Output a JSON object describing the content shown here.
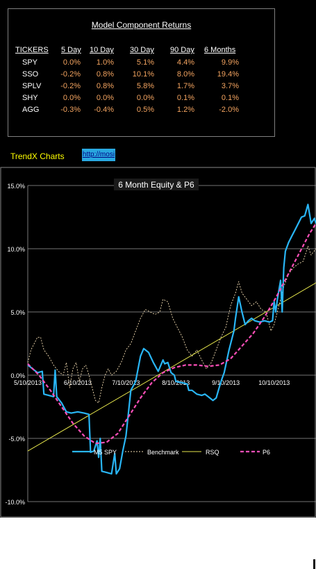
{
  "returns_table": {
    "title": "Model Component Returns",
    "columns": [
      "TICKERS",
      "5 Day",
      "10 Day",
      "30 Day",
      "90 Day",
      "6 Months"
    ],
    "rows": [
      {
        "ticker": "SPY",
        "values": [
          "0.0%",
          "1.0%",
          "5.1%",
          "4.4%",
          "9.9%"
        ]
      },
      {
        "ticker": "SSO",
        "values": [
          "-0.2%",
          "0.8%",
          "10.1%",
          "8.0%",
          "19.4%"
        ]
      },
      {
        "ticker": "SPLV",
        "values": [
          "-0.2%",
          "0.8%",
          "5.8%",
          "1.7%",
          "3.7%"
        ]
      },
      {
        "ticker": "SHY",
        "values": [
          "0.0%",
          "0.0%",
          "0.0%",
          "0.1%",
          "0.1%"
        ]
      },
      {
        "ticker": "AGG",
        "values": [
          "-0.3%",
          "-0.4%",
          "0.5%",
          "1.2%",
          "-2.0%"
        ]
      }
    ]
  },
  "links": {
    "trendx_label": "TrendX Charts",
    "url_text": "http://mosi"
  },
  "colors": {
    "background": "#000000",
    "header_text": "#ffffff",
    "value_text": "#f4a460",
    "trendx_text": "#ffff00",
    "link_bg": "#29a8e0",
    "m5_spy": "#29b6f6",
    "benchmark": "#f5deb3",
    "rsq": "#e6e64c",
    "p6": "#ff4fb8"
  },
  "chart_data": {
    "type": "line",
    "title": "6 Month  Equity & P6",
    "y_tick_labels": [
      "15.0%",
      "10.0%",
      "5.0%",
      "0.0%",
      "-5.0%",
      "-10.0%"
    ],
    "y_ticks": [
      15,
      10,
      5,
      0,
      -5,
      -10
    ],
    "ylim": [
      -10,
      15
    ],
    "x_tick_labels": [
      "5/10/2013",
      "6/10/2013",
      "7/10/2013",
      "8/10/2013",
      "9/10/2013",
      "10/10/2013"
    ],
    "x_ticks": [
      "2013-05-10",
      "2013-06-10",
      "2013-07-10",
      "2013-08-10",
      "2013-09-10",
      "2013-10-10"
    ],
    "xlim": [
      "2013-05-10",
      "2013-11-05"
    ],
    "grid": "horizontal",
    "legend_position": "bottom",
    "series": [
      {
        "name": "M5 SPY",
        "style": "solid",
        "points": [
          [
            "2013-05-10",
            0.8
          ],
          [
            "2013-05-13",
            0.5
          ],
          [
            "2013-05-16",
            0.2
          ],
          [
            "2013-05-19",
            0.3
          ],
          [
            "2013-05-20",
            -1.5
          ],
          [
            "2013-05-23",
            -1.6
          ],
          [
            "2013-05-26",
            -1.7
          ],
          [
            "2013-05-27",
            0.4
          ],
          [
            "2013-05-28",
            -1.7
          ],
          [
            "2013-05-31",
            -2.2
          ],
          [
            "2013-06-03",
            -2.9
          ],
          [
            "2013-06-06",
            -3.0
          ],
          [
            "2013-06-10",
            -2.9
          ],
          [
            "2013-06-14",
            -3.0
          ],
          [
            "2013-06-17",
            -3.1
          ],
          [
            "2013-06-18",
            -6.1
          ],
          [
            "2013-06-20",
            -6.0
          ],
          [
            "2013-06-22",
            -5.2
          ],
          [
            "2013-06-23",
            -6.5
          ],
          [
            "2013-06-24",
            -5.0
          ],
          [
            "2013-06-25",
            -7.6
          ],
          [
            "2013-06-28",
            -7.7
          ],
          [
            "2013-07-01",
            -7.8
          ],
          [
            "2013-07-03",
            -6.2
          ],
          [
            "2013-07-04",
            -7.8
          ],
          [
            "2013-07-06",
            -7.4
          ],
          [
            "2013-07-08",
            -6.0
          ],
          [
            "2013-07-10",
            -4.8
          ],
          [
            "2013-07-13",
            -1.2
          ],
          [
            "2013-07-16",
            -0.5
          ],
          [
            "2013-07-19",
            1.5
          ],
          [
            "2013-07-21",
            2.1
          ],
          [
            "2013-07-24",
            1.8
          ],
          [
            "2013-07-27",
            1.0
          ],
          [
            "2013-07-30",
            0.3
          ],
          [
            "2013-08-02",
            1.2
          ],
          [
            "2013-08-03",
            0.9
          ],
          [
            "2013-08-05",
            1.0
          ],
          [
            "2013-08-07",
            0.2
          ],
          [
            "2013-08-09",
            0.0
          ],
          [
            "2013-08-10",
            -0.5
          ],
          [
            "2013-08-14",
            -0.6
          ],
          [
            "2013-08-17",
            -0.7
          ],
          [
            "2013-08-18",
            -1.2
          ],
          [
            "2013-08-20",
            -1.2
          ],
          [
            "2013-08-23",
            -1.5
          ],
          [
            "2013-08-26",
            -1.6
          ],
          [
            "2013-08-28",
            -1.5
          ],
          [
            "2013-08-30",
            -1.7
          ],
          [
            "2013-09-02",
            -2.0
          ],
          [
            "2013-09-04",
            -1.8
          ],
          [
            "2013-09-07",
            -0.5
          ],
          [
            "2013-09-09",
            0.2
          ],
          [
            "2013-09-12",
            2.0
          ],
          [
            "2013-09-15",
            3.5
          ],
          [
            "2013-09-16",
            4.5
          ],
          [
            "2013-09-18",
            6.2
          ],
          [
            "2013-09-20",
            5.0
          ],
          [
            "2013-09-22",
            4.0
          ],
          [
            "2013-09-24",
            4.3
          ],
          [
            "2013-09-26",
            4.5
          ],
          [
            "2013-09-28",
            4.3
          ],
          [
            "2013-10-01",
            4.2
          ],
          [
            "2013-10-04",
            4.3
          ],
          [
            "2013-10-07",
            4.2
          ],
          [
            "2013-10-09",
            4.3
          ],
          [
            "2013-10-10",
            5.8
          ],
          [
            "2013-10-11",
            5.0
          ],
          [
            "2013-10-12",
            6.0
          ],
          [
            "2013-10-14",
            7.5
          ],
          [
            "2013-10-15",
            5.0
          ],
          [
            "2013-10-16",
            8.5
          ],
          [
            "2013-10-17",
            9.8
          ],
          [
            "2013-10-19",
            10.5
          ],
          [
            "2013-10-21",
            11.0
          ],
          [
            "2013-10-23",
            11.5
          ],
          [
            "2013-10-25",
            12.0
          ],
          [
            "2013-10-27",
            12.5
          ],
          [
            "2013-10-29",
            12.6
          ],
          [
            "2013-10-31",
            13.5
          ],
          [
            "2013-11-02",
            12.0
          ],
          [
            "2013-11-04",
            12.4
          ],
          [
            "2013-11-05",
            12.0
          ]
        ]
      },
      {
        "name": "Benchmark",
        "style": "dashed",
        "points": [
          [
            "2013-05-10",
            1.0
          ],
          [
            "2013-05-12",
            2.0
          ],
          [
            "2013-05-14",
            2.5
          ],
          [
            "2013-05-16",
            3.0
          ],
          [
            "2013-05-18",
            3.0
          ],
          [
            "2013-05-20",
            2.0
          ],
          [
            "2013-05-23",
            1.5
          ],
          [
            "2013-05-26",
            0.8
          ],
          [
            "2013-05-29",
            0.3
          ],
          [
            "2013-06-01",
            0.0
          ],
          [
            "2013-06-03",
            1.0
          ],
          [
            "2013-06-05",
            -1.0
          ],
          [
            "2013-06-07",
            0.5
          ],
          [
            "2013-06-09",
            1.0
          ],
          [
            "2013-06-11",
            -0.5
          ],
          [
            "2013-06-13",
            0.5
          ],
          [
            "2013-06-15",
            0.8
          ],
          [
            "2013-06-17",
            0.0
          ],
          [
            "2013-06-19",
            -1.0
          ],
          [
            "2013-06-21",
            -2.0
          ],
          [
            "2013-06-23",
            -2.2
          ],
          [
            "2013-06-25",
            -1.0
          ],
          [
            "2013-06-27",
            0.0
          ],
          [
            "2013-06-29",
            0.5
          ],
          [
            "2013-07-01",
            0.0
          ],
          [
            "2013-07-04",
            0.3
          ],
          [
            "2013-07-07",
            1.0
          ],
          [
            "2013-07-10",
            2.0
          ],
          [
            "2013-07-13",
            2.5
          ],
          [
            "2013-07-16",
            3.5
          ],
          [
            "2013-07-19",
            4.5
          ],
          [
            "2013-07-22",
            5.2
          ],
          [
            "2013-07-25",
            5.0
          ],
          [
            "2013-07-28",
            4.8
          ],
          [
            "2013-07-31",
            5.0
          ],
          [
            "2013-08-02",
            6.0
          ],
          [
            "2013-08-05",
            5.8
          ],
          [
            "2013-08-08",
            4.5
          ],
          [
            "2013-08-10",
            4.0
          ],
          [
            "2013-08-14",
            3.0
          ],
          [
            "2013-08-17",
            2.0
          ],
          [
            "2013-08-20",
            1.5
          ],
          [
            "2013-08-23",
            2.0
          ],
          [
            "2013-08-26",
            1.2
          ],
          [
            "2013-08-29",
            0.5
          ],
          [
            "2013-09-01",
            1.0
          ],
          [
            "2013-09-04",
            2.0
          ],
          [
            "2013-09-07",
            3.0
          ],
          [
            "2013-09-10",
            3.8
          ],
          [
            "2013-09-13",
            5.5
          ],
          [
            "2013-09-16",
            6.5
          ],
          [
            "2013-09-18",
            7.4
          ],
          [
            "2013-09-20",
            6.5
          ],
          [
            "2013-09-23",
            6.0
          ],
          [
            "2013-09-26",
            5.5
          ],
          [
            "2013-09-29",
            5.8
          ],
          [
            "2013-10-02",
            5.2
          ],
          [
            "2013-10-05",
            5.0
          ],
          [
            "2013-10-08",
            3.5
          ],
          [
            "2013-10-10",
            4.0
          ],
          [
            "2013-10-13",
            5.5
          ],
          [
            "2013-10-16",
            7.0
          ],
          [
            "2013-10-19",
            8.0
          ],
          [
            "2013-10-22",
            8.5
          ],
          [
            "2013-10-25",
            8.8
          ],
          [
            "2013-10-28",
            9.0
          ],
          [
            "2013-10-31",
            10.2
          ],
          [
            "2013-11-02",
            9.5
          ],
          [
            "2013-11-05",
            10.0
          ]
        ]
      },
      {
        "name": "RSQ",
        "style": "solid",
        "points": [
          [
            "2013-05-10",
            -6.0
          ],
          [
            "2013-11-05",
            7.3
          ]
        ]
      },
      {
        "name": "P6",
        "style": "dashed-thick",
        "points": [
          [
            "2013-05-10",
            0.9
          ],
          [
            "2013-05-17",
            0.0
          ],
          [
            "2013-05-24",
            -1.2
          ],
          [
            "2013-05-31",
            -2.5
          ],
          [
            "2013-06-07",
            -3.8
          ],
          [
            "2013-06-14",
            -4.8
          ],
          [
            "2013-06-21",
            -5.4
          ],
          [
            "2013-06-28",
            -5.3
          ],
          [
            "2013-07-05",
            -4.6
          ],
          [
            "2013-07-12",
            -3.2
          ],
          [
            "2013-07-19",
            -1.8
          ],
          [
            "2013-07-26",
            -0.6
          ],
          [
            "2013-08-02",
            0.2
          ],
          [
            "2013-08-09",
            0.6
          ],
          [
            "2013-08-16",
            0.8
          ],
          [
            "2013-08-23",
            0.8
          ],
          [
            "2013-08-30",
            0.7
          ],
          [
            "2013-09-06",
            0.8
          ],
          [
            "2013-09-13",
            1.3
          ],
          [
            "2013-09-20",
            2.3
          ],
          [
            "2013-09-27",
            3.3
          ],
          [
            "2013-10-04",
            4.6
          ],
          [
            "2013-10-11",
            6.1
          ],
          [
            "2013-10-18",
            7.8
          ],
          [
            "2013-10-25",
            9.5
          ],
          [
            "2013-11-01",
            11.2
          ],
          [
            "2013-11-05",
            12.0
          ]
        ]
      }
    ]
  }
}
